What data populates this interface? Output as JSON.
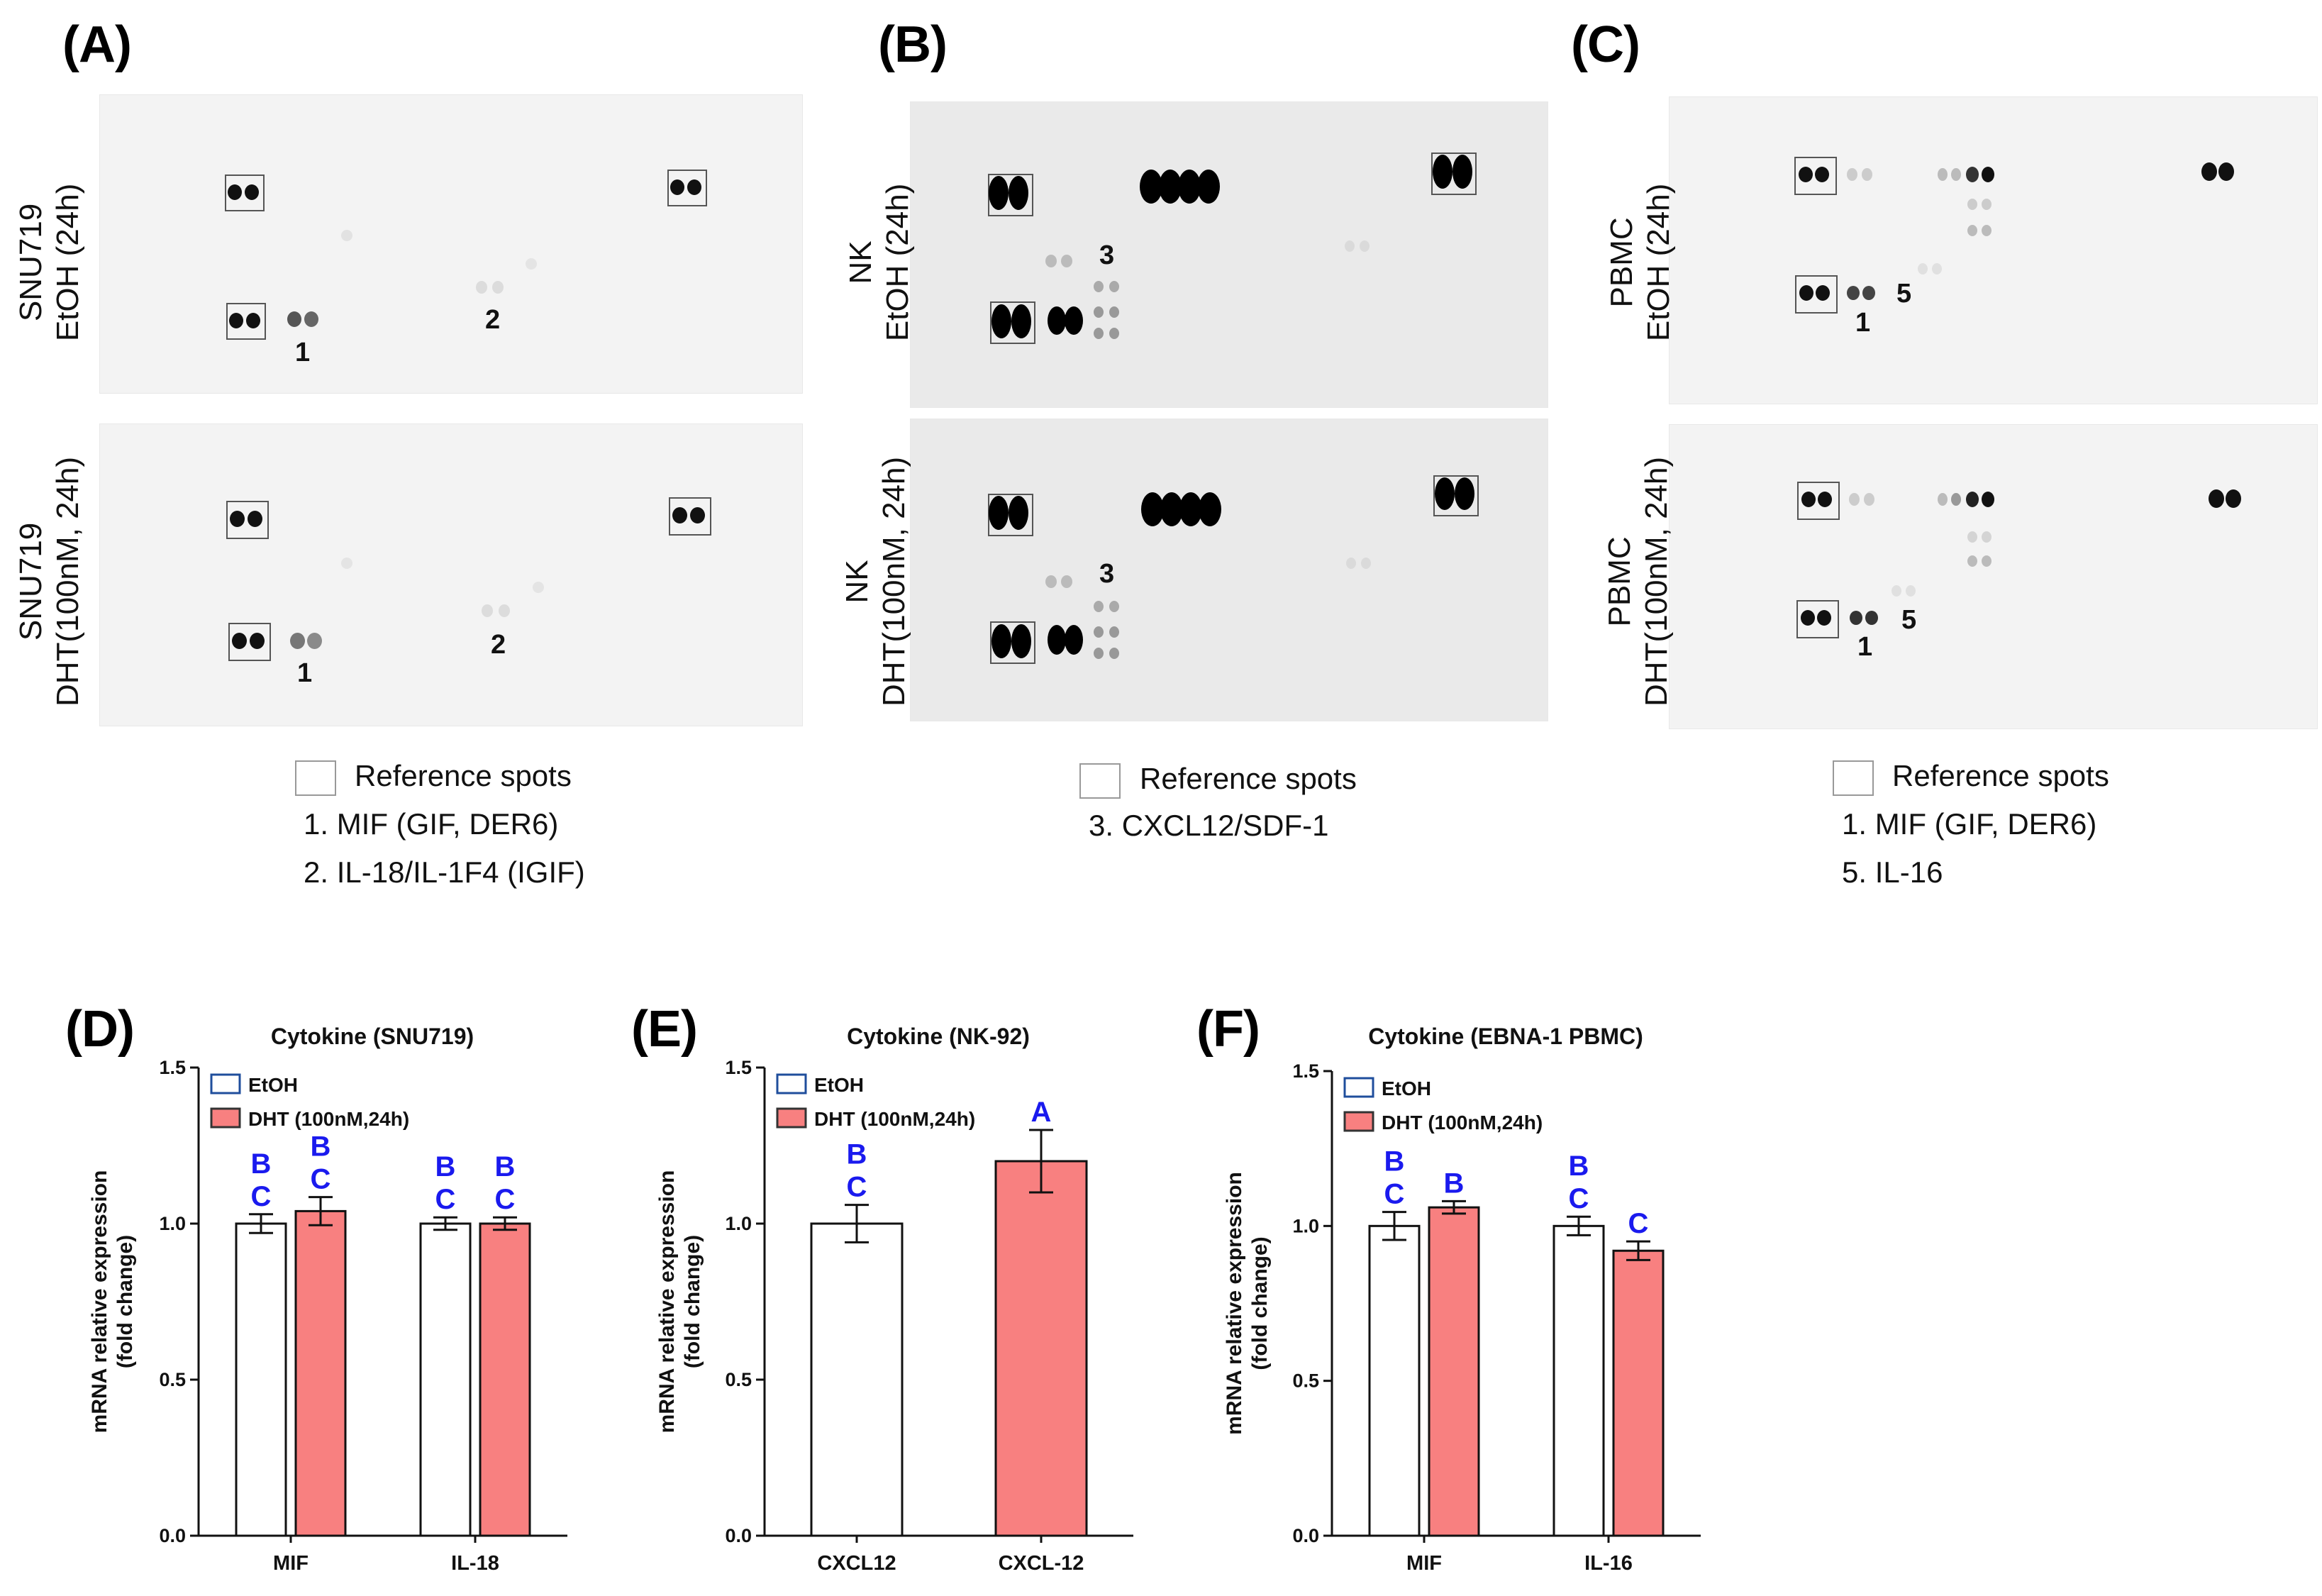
{
  "panels": [
    {
      "id": "A",
      "label": "(A)"
    },
    {
      "id": "B",
      "label": "(B)"
    },
    {
      "id": "C",
      "label": "(C)"
    },
    {
      "id": "D",
      "label": "(D)"
    },
    {
      "id": "E",
      "label": "(E)"
    },
    {
      "id": "F",
      "label": "(F)"
    }
  ],
  "blots": {
    "A": {
      "top_label": [
        "SNU719",
        "EtOH (24h)"
      ],
      "bottom_label": [
        "SNU719",
        "DHT(100nM, 24h)"
      ],
      "spot_numbers": [
        "1",
        "2",
        "1",
        "2"
      ],
      "legend": {
        "reference": "Reference spots",
        "items": [
          "1.  MIF (GIF, DER6)",
          "2.  IL-18/IL-1F4 (IGIF)"
        ]
      }
    },
    "B": {
      "top_label": [
        "NK",
        "EtOH (24h)"
      ],
      "bottom_label": [
        "NK",
        "DHT(100nM, 24h)"
      ],
      "spot_numbers": [
        "3",
        "3"
      ],
      "legend": {
        "reference": "Reference spots",
        "items": [
          "3.  CXCL12/SDF-1"
        ]
      }
    },
    "C": {
      "top_label": [
        "PBMC",
        "EtOH (24h)"
      ],
      "bottom_label": [
        "PBMC",
        "DHT(100nM, 24h)"
      ],
      "spot_numbers": [
        "1",
        "5",
        "1",
        "5"
      ],
      "legend": {
        "reference": "Reference spots",
        "items": [
          "1.  MIF (GIF, DER6)",
          "5.  IL-16"
        ]
      }
    }
  },
  "colors": {
    "etoh_fill": "#ffffff",
    "etoh_legend_border": "#1f4e9c",
    "dht_fill": "#f88080",
    "letters": "#1a1aee"
  },
  "chart_data": [
    {
      "type": "bar",
      "id": "D",
      "title": "Cytokine (SNU719)",
      "ylabel": [
        "mRNA relative expression",
        "(fold change)"
      ],
      "ylim": [
        0,
        1.5
      ],
      "yticks": [
        "0.0",
        "0.5",
        "1.0",
        "1.5"
      ],
      "categories": [
        "MIF",
        "IL-18"
      ],
      "series": [
        {
          "name": "EtOH",
          "values": [
            1.0,
            1.0
          ],
          "errors": [
            0.03,
            0.02
          ],
          "letters": [
            [
              "B",
              "C"
            ],
            [
              "B",
              "C"
            ]
          ]
        },
        {
          "name": "DHT (100nM,24h)",
          "values": [
            1.04,
            1.0
          ],
          "errors": [
            0.045,
            0.02
          ],
          "letters": [
            [
              "B",
              "C"
            ],
            [
              "B",
              "C"
            ]
          ]
        }
      ]
    },
    {
      "type": "bar",
      "id": "E",
      "title": "Cytokine (NK-92)",
      "ylabel": [
        "mRNA relative expression",
        "(fold change)"
      ],
      "ylim": [
        0,
        1.5
      ],
      "yticks": [
        "0.0",
        "0.5",
        "1.0",
        "1.5"
      ],
      "categories": [
        "CXCL12",
        "CXCL-12"
      ],
      "series": [
        {
          "name": "EtOH",
          "values": [
            1.0,
            null
          ],
          "errors": [
            0.06,
            null
          ],
          "letters": [
            [
              "B",
              "C"
            ],
            []
          ]
        },
        {
          "name": "DHT (100nM,24h)",
          "values": [
            null,
            1.2
          ],
          "errors": [
            null,
            0.1
          ],
          "letters": [
            [],
            [
              "A"
            ]
          ]
        }
      ]
    },
    {
      "type": "bar",
      "id": "F",
      "title": "Cytokine (EBNA-1 PBMC)",
      "ylabel": [
        "mRNA relative expression",
        "(fold change)"
      ],
      "ylim": [
        0,
        1.5
      ],
      "yticks": [
        "0.0",
        "0.5",
        "1.0",
        "1.5"
      ],
      "categories": [
        "MIF",
        "IL-16"
      ],
      "series": [
        {
          "name": "EtOH",
          "values": [
            1.0,
            1.0
          ],
          "errors": [
            0.045,
            0.03
          ],
          "letters": [
            [
              "B",
              "C"
            ],
            [
              "B",
              "C"
            ]
          ]
        },
        {
          "name": "DHT (100nM,24h)",
          "values": [
            1.06,
            0.92
          ],
          "errors": [
            0.02,
            0.03
          ],
          "letters": [
            [
              "B"
            ],
            [
              "C"
            ]
          ]
        }
      ]
    }
  ]
}
